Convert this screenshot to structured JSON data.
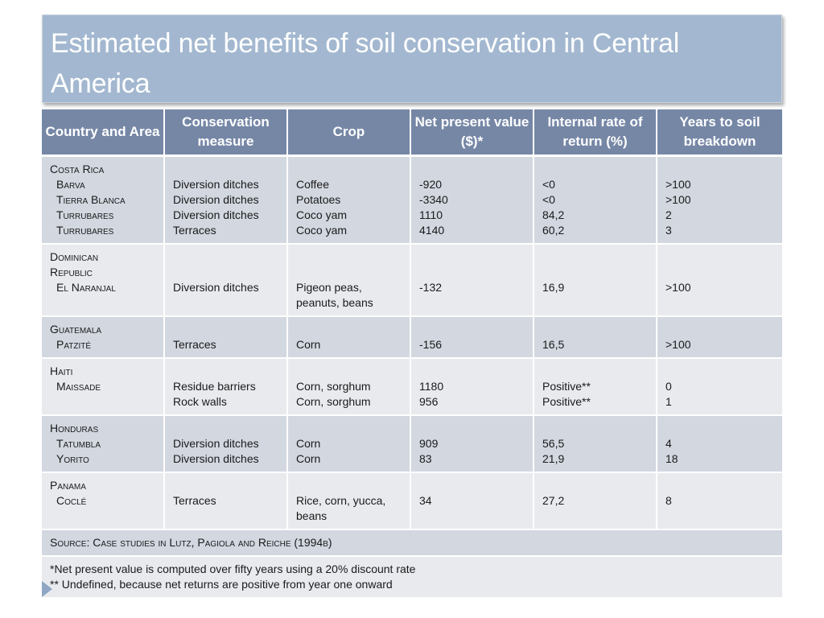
{
  "title": "Estimated net benefits of soil conservation in Central America",
  "headers": [
    "Country and Area",
    "Conservation measure",
    "Crop",
    "Net present value ($)*",
    "Internal rate of return (%)",
    "Years to soil breakdown"
  ],
  "groups": [
    {
      "country": "Costa Rica",
      "rows": [
        {
          "area": "Barva",
          "measure": "Diversion ditches",
          "crop": "Coffee",
          "npv": "-920",
          "irr": "<0",
          "years": ">100"
        },
        {
          "area": "Tierra Blanca",
          "measure": "Diversion ditches",
          "crop": "Potatoes",
          "npv": "-3340",
          "irr": "<0",
          "years": ">100"
        },
        {
          "area": "Turrubares",
          "measure": "Diversion ditches",
          "crop": "Coco yam",
          "npv": "1110",
          "irr": "84,2",
          "years": "2"
        },
        {
          "area": "Turrubares",
          "measure": "Terraces",
          "crop": "Coco yam",
          "npv": "4140",
          "irr": "60,2",
          "years": "3"
        }
      ]
    },
    {
      "country_line1": "Dominican",
      "country_line2": "Republic",
      "rows": [
        {
          "area": "El Naranjal",
          "measure": "Diversion ditches",
          "crop": "Pigeon peas, peanuts, beans",
          "npv": "-132",
          "irr": "16,9",
          "years": ">100"
        }
      ]
    },
    {
      "country": "Guatemala",
      "rows": [
        {
          "area": "Patzité",
          "measure": "Terraces",
          "crop": "Corn",
          "npv": "-156",
          "irr": "16,5",
          "years": ">100"
        }
      ]
    },
    {
      "country": "Haiti",
      "rows": [
        {
          "area": "Maissade",
          "measure": "Residue barriers",
          "crop": "Corn, sorghum",
          "npv": "1180",
          "irr": "Positive**",
          "years": "0"
        },
        {
          "area": "",
          "measure": "Rock walls",
          "crop": "Corn, sorghum",
          "npv": "956",
          "irr": "Positive**",
          "years": "1"
        }
      ]
    },
    {
      "country": "Honduras",
      "rows": [
        {
          "area": "Tatumbla",
          "measure": "Diversion ditches",
          "crop": "Corn",
          "npv": "909",
          "irr": "56,5",
          "years": "4"
        },
        {
          "area": "Yorito",
          "measure": "Diversion ditches",
          "crop": "Corn",
          "npv": "83",
          "irr": "21,9",
          "years": "18"
        }
      ]
    },
    {
      "country": "Panama",
      "rows": [
        {
          "area": "Coclé",
          "measure": "Terraces",
          "crop": "Rice, corn, yucca, beans",
          "npv": "34",
          "irr": "27,2",
          "years": "8"
        }
      ]
    }
  ],
  "source": "Source: Case studies in Lutz, Pagiola and Reiche (1994b)",
  "notes": [
    "*Net present value is computed over fifty years using a 20% discount rate",
    "** Undefined, because net returns are positive from year one onward"
  ]
}
